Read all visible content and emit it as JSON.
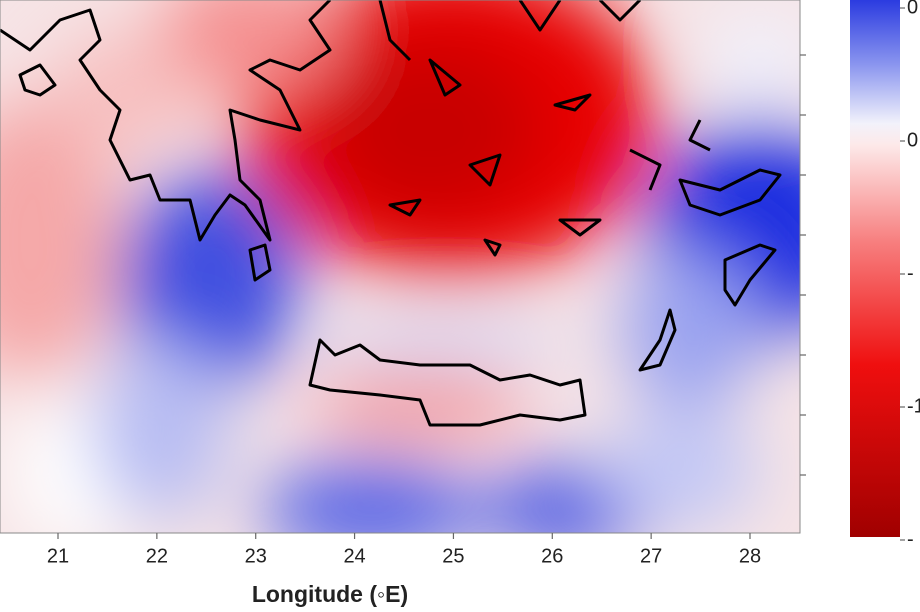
{
  "x_axis": {
    "label": "Longitude (◦E)",
    "ticks": [
      21,
      22,
      23,
      24,
      25,
      26,
      27,
      28
    ]
  },
  "colorbar": {
    "tick_labels": [
      "0",
      "0",
      "-",
      "-1",
      "-"
    ]
  }
}
